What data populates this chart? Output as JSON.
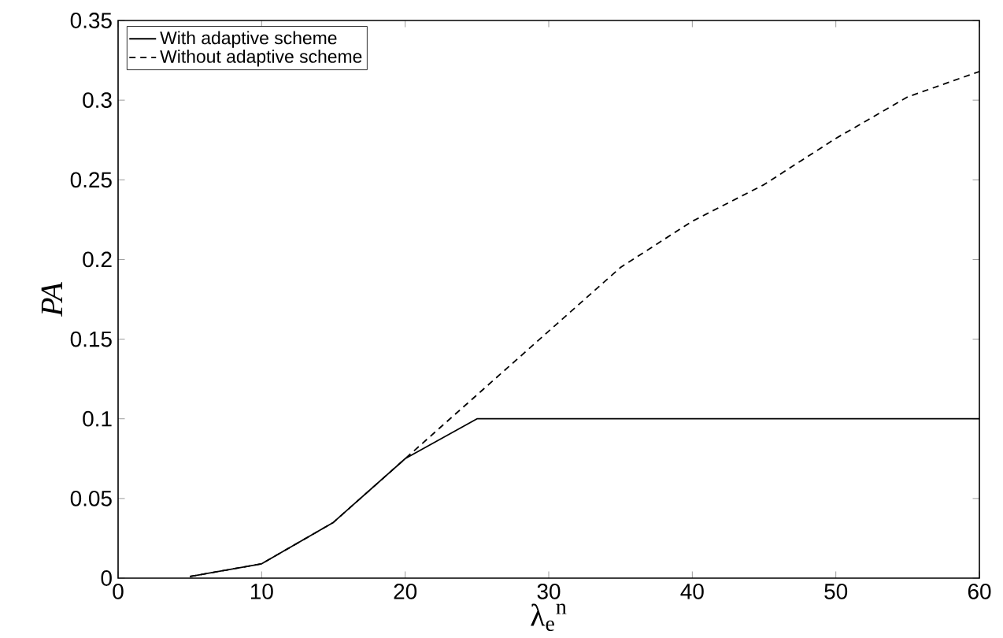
{
  "chart_data": {
    "type": "line",
    "xlabel": "λ$_{e}$$^{n}$",
    "ylabel": "PA",
    "x": [
      5,
      10,
      15,
      20,
      25,
      30,
      35,
      40,
      45,
      50,
      55,
      60
    ],
    "series": [
      {
        "name": "With adaptive scheme",
        "color": "#000000",
        "line_style": "solid",
        "values": [
          0.001,
          0.009,
          0.035,
          0.075,
          0.1,
          0.1,
          0.1,
          0.1,
          0.1,
          0.1,
          0.1,
          0.1
        ]
      },
      {
        "name": "Without adaptive scheme",
        "color": "#000000",
        "line_style": "dashed",
        "values": [
          0.001,
          0.009,
          0.035,
          0.075,
          0.115,
          0.155,
          0.195,
          0.224,
          0.247,
          0.276,
          0.302,
          0.318
        ]
      }
    ],
    "xlim": [
      0,
      60
    ],
    "xticks": [
      0,
      10,
      20,
      30,
      40,
      50,
      60
    ],
    "ylim": [
      0,
      0.35
    ],
    "yticks": [
      0,
      0.05,
      0.1,
      0.15,
      0.2,
      0.25,
      0.3,
      0.35
    ],
    "legend": "top left",
    "grid": false,
    "marker": "none"
  }
}
